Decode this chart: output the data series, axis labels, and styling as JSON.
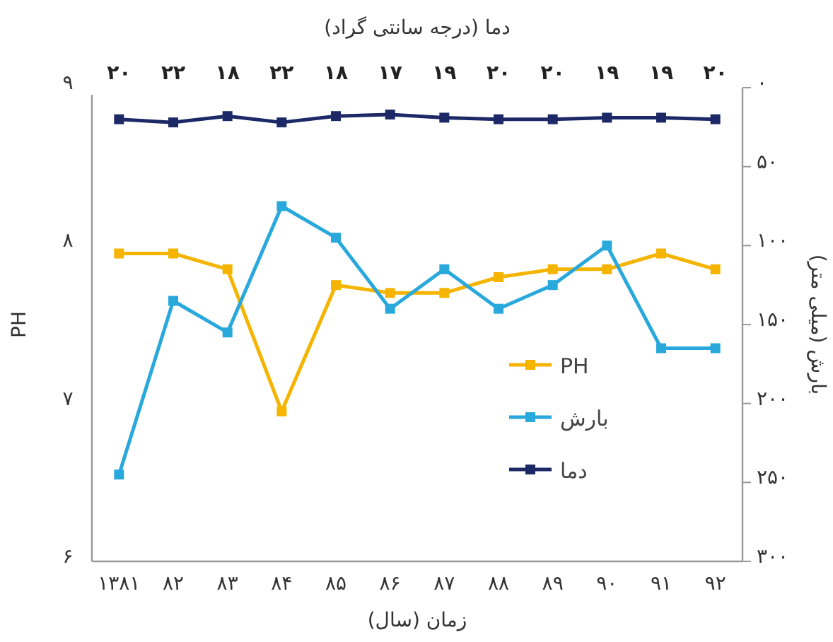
{
  "chart_data": {
    "type": "line",
    "xlabel": "زمان (سال)",
    "ylabel": "PH",
    "y2label": "بارش (میلی متر)",
    "x2label": "دما (درجه سانتی گراد)",
    "categories": [
      "۱۳۸۱",
      "۸۲",
      "۸۳",
      "۸۴",
      "۸۵",
      "۸۶",
      "۸۷",
      "۸۸",
      "۸۹",
      "۹۰",
      "۹۱",
      "۹۲"
    ],
    "series": [
      {
        "name": "PH",
        "color": "#f5b400",
        "values": [
          7.95,
          7.95,
          7.85,
          6.95,
          7.75,
          7.7,
          7.7,
          7.8,
          7.85,
          7.85,
          7.95,
          7.85
        ]
      },
      {
        "name": "بارش",
        "color": "#29a8dc",
        "axis": "y2",
        "values": [
          245,
          135,
          155,
          75,
          95,
          140,
          115,
          140,
          125,
          100,
          165,
          165
        ]
      },
      {
        "name": "دما",
        "color": "#1c2966",
        "axis": "y2",
        "values": [
          20,
          22,
          18,
          22,
          18,
          17,
          19,
          20,
          20,
          19,
          19,
          20
        ],
        "value_labels": [
          "۲۰",
          "۲۲",
          "۱۸",
          "۲۲",
          "۱۸",
          "۱۷",
          "۱۹",
          "۲۰",
          "۲۰",
          "۱۹",
          "۱۹",
          "۲۰"
        ]
      }
    ],
    "ylim": [
      6,
      9
    ],
    "yticks": [
      {
        "value": 6,
        "label": "۶"
      },
      {
        "value": 7,
        "label": "۷"
      },
      {
        "value": 8,
        "label": "۸"
      },
      {
        "value": 9,
        "label": "۹"
      }
    ],
    "y2lim": [
      300,
      0
    ],
    "y2ticks": [
      {
        "value": 0,
        "label": "۰"
      },
      {
        "value": 50,
        "label": "۵۰"
      },
      {
        "value": 100,
        "label": "۱۰۰"
      },
      {
        "value": 150,
        "label": "۱۵۰"
      },
      {
        "value": 200,
        "label": "۲۰۰"
      },
      {
        "value": 250,
        "label": "۲۵۰"
      },
      {
        "value": 300,
        "label": "۳۰۰"
      }
    ],
    "marker": "square",
    "legend": "right"
  }
}
